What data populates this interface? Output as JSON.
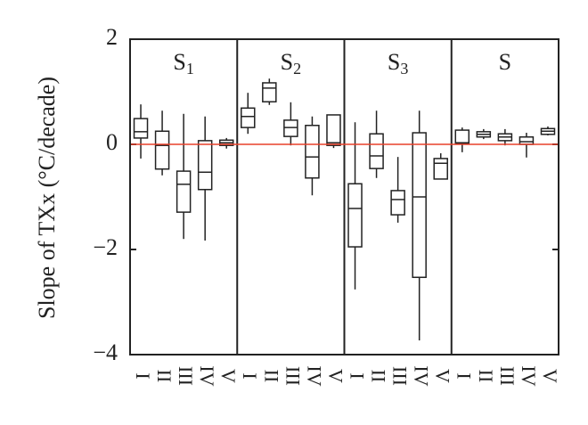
{
  "chart_data": {
    "type": "box",
    "ylabel": "Slope of TXx (°C/decade)",
    "ylim": [
      -4,
      2
    ],
    "yticks": [
      {
        "value": -4,
        "label": "−4"
      },
      {
        "value": -2,
        "label": "−2"
      },
      0,
      2
    ],
    "hline": {
      "value": 0,
      "color": "#e8402a"
    },
    "categories": [
      "I",
      "II",
      "III",
      "IV",
      "V"
    ],
    "panels": [
      {
        "name": "S",
        "subscript": "1",
        "boxes": [
          {
            "whislo": -0.27,
            "q1": 0.12,
            "med": 0.24,
            "q3": 0.49,
            "whishi": 0.76
          },
          {
            "whislo": -0.59,
            "q1": -0.47,
            "med": -0.02,
            "q3": 0.25,
            "whishi": 0.64
          },
          {
            "whislo": -1.8,
            "q1": -1.29,
            "med": -0.76,
            "q3": -0.51,
            "whishi": 0.58
          },
          {
            "whislo": -1.83,
            "q1": -0.86,
            "med": -0.53,
            "q3": 0.07,
            "whishi": 0.53
          },
          {
            "whislo": -0.08,
            "q1": -0.02,
            "med": 0.03,
            "q3": 0.08,
            "whishi": 0.12
          }
        ]
      },
      {
        "name": "S",
        "subscript": "2",
        "boxes": [
          {
            "whislo": 0.2,
            "q1": 0.32,
            "med": 0.53,
            "q3": 0.69,
            "whishi": 0.98
          },
          {
            "whislo": 0.75,
            "q1": 0.81,
            "med": 1.07,
            "q3": 1.17,
            "whishi": 1.25
          },
          {
            "whislo": -0.02,
            "q1": 0.15,
            "med": 0.32,
            "q3": 0.46,
            "whishi": 0.8
          },
          {
            "whislo": -0.97,
            "q1": -0.64,
            "med": -0.24,
            "q3": 0.36,
            "whishi": 0.53
          },
          {
            "whislo": -0.07,
            "q1": -0.02,
            "med": 0.03,
            "q3": 0.56,
            "whishi": 0.56
          }
        ]
      },
      {
        "name": "S",
        "subscript": "3",
        "boxes": [
          {
            "whislo": -2.76,
            "q1": -1.95,
            "med": -1.22,
            "q3": -0.75,
            "whishi": 0.42
          },
          {
            "whislo": -0.64,
            "q1": -0.46,
            "med": -0.22,
            "q3": 0.2,
            "whishi": 0.64
          },
          {
            "whislo": -1.49,
            "q1": -1.34,
            "med": -1.05,
            "q3": -0.88,
            "whishi": -0.24
          },
          {
            "whislo": -3.73,
            "q1": -2.53,
            "med": -1.0,
            "q3": 0.22,
            "whishi": 0.64
          },
          {
            "whislo": -0.66,
            "q1": -0.66,
            "med": -0.36,
            "q3": -0.27,
            "whishi": -0.17
          }
        ]
      },
      {
        "name": "S",
        "boxes": [
          {
            "whislo": -0.15,
            "q1": 0.02,
            "med": 0.03,
            "q3": 0.27,
            "whishi": 0.32
          },
          {
            "whislo": 0.1,
            "q1": 0.14,
            "med": 0.19,
            "q3": 0.24,
            "whishi": 0.29
          },
          {
            "whislo": -0.02,
            "q1": 0.07,
            "med": 0.14,
            "q3": 0.2,
            "whishi": 0.29
          },
          {
            "whislo": -0.25,
            "q1": 0,
            "med": 0.05,
            "q3": 0.14,
            "whishi": 0.22
          },
          {
            "whislo": 0.17,
            "q1": 0.19,
            "med": 0.25,
            "q3": 0.3,
            "whishi": 0.34
          }
        ]
      }
    ]
  }
}
